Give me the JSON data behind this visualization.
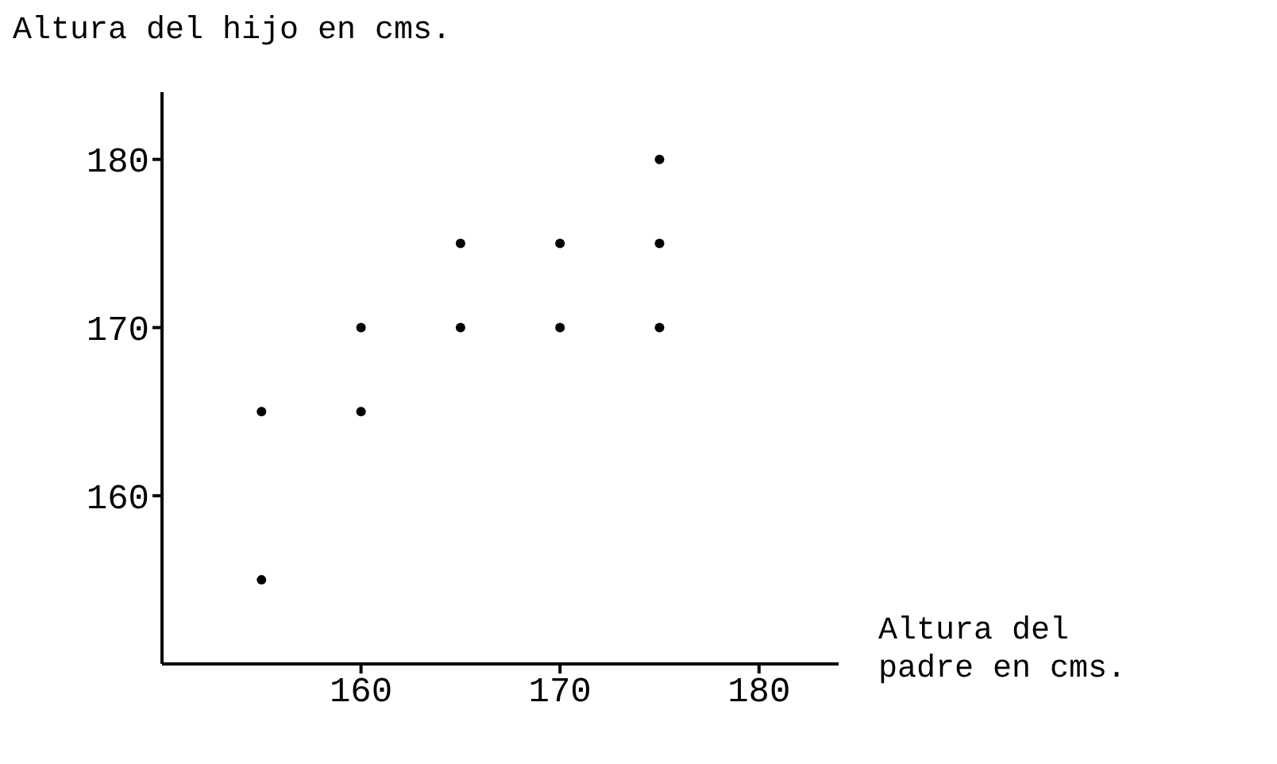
{
  "chart_data": {
    "type": "scatter",
    "xlabel": "Altura del\npadre en cms.",
    "ylabel": "Altura del hijo en cms.",
    "x": [
      155,
      155,
      160,
      160,
      165,
      165,
      170,
      170,
      175,
      175,
      175
    ],
    "values": [
      155,
      165,
      165,
      170,
      170,
      175,
      170,
      175,
      170,
      175,
      180
    ],
    "color": "#000000",
    "marker": "circle",
    "grid": false,
    "xlim": [
      150,
      184
    ],
    "ylim": [
      150,
      184
    ],
    "xticks": [
      160,
      170,
      180
    ],
    "yticks": [
      160,
      170,
      180
    ]
  }
}
